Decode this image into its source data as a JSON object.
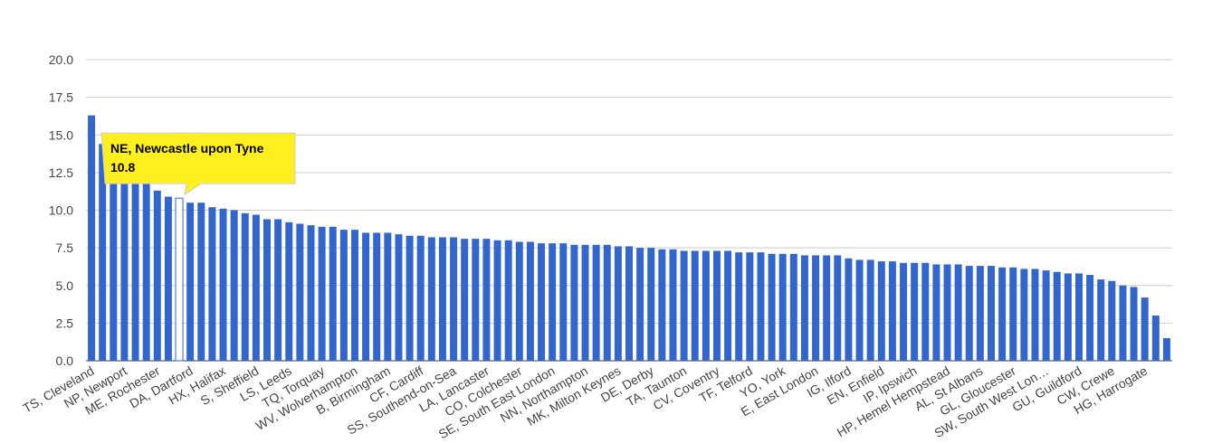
{
  "chart_data": {
    "type": "bar",
    "categories": [
      "TS, Cleveland",
      null,
      null,
      "NP, Newport",
      null,
      null,
      "ME, Rochester",
      null,
      "NE, Newcastle upon Tyne",
      "DA, Dartford",
      null,
      null,
      "HX, Halifax",
      null,
      null,
      "S, Sheffield",
      null,
      null,
      "LS, Leeds",
      null,
      null,
      "TQ, Torquay",
      null,
      null,
      "WV, Wolverhampton",
      null,
      null,
      "B, Birmingham",
      null,
      null,
      "CF, Cardiff",
      null,
      null,
      "SS, Southend-on-Sea",
      null,
      null,
      "LA, Lancaster",
      null,
      null,
      "CO, Colchester",
      null,
      null,
      "SE, South East London",
      null,
      null,
      "NN, Northampton",
      null,
      null,
      "MK, Milton Keynes",
      null,
      null,
      "DE, Derby",
      null,
      null,
      "TA, Taunton",
      null,
      null,
      "CV, Coventry",
      null,
      null,
      "TF, Telford",
      null,
      null,
      "YO, York",
      null,
      null,
      "E, East London",
      null,
      null,
      "IG, Ilford",
      null,
      null,
      "EN, Enfield",
      null,
      null,
      "IP, Ipswich",
      null,
      null,
      "HP, Hemel Hempstead",
      null,
      null,
      "AL, St Albans",
      null,
      null,
      "GL, Gloucester",
      null,
      null,
      "SW, South West Lon…",
      null,
      null,
      "GU, Guildford",
      null,
      null,
      "CW, Crewe",
      null,
      null,
      "HG, Harrogate",
      null,
      null
    ],
    "values": [
      16.3,
      14.4,
      12.2,
      12.0,
      11.9,
      11.8,
      11.3,
      10.9,
      10.8,
      10.5,
      10.5,
      10.2,
      10.1,
      10.0,
      9.8,
      9.7,
      9.4,
      9.4,
      9.2,
      9.1,
      9.0,
      8.9,
      8.9,
      8.7,
      8.7,
      8.5,
      8.5,
      8.5,
      8.4,
      8.3,
      8.3,
      8.2,
      8.2,
      8.2,
      8.1,
      8.1,
      8.1,
      8.0,
      8.0,
      7.9,
      7.9,
      7.8,
      7.8,
      7.8,
      7.7,
      7.7,
      7.7,
      7.7,
      7.6,
      7.6,
      7.5,
      7.5,
      7.4,
      7.4,
      7.3,
      7.3,
      7.3,
      7.3,
      7.3,
      7.2,
      7.2,
      7.2,
      7.1,
      7.1,
      7.1,
      7.0,
      7.0,
      7.0,
      7.0,
      6.8,
      6.7,
      6.7,
      6.6,
      6.6,
      6.5,
      6.5,
      6.5,
      6.4,
      6.4,
      6.4,
      6.3,
      6.3,
      6.3,
      6.2,
      6.2,
      6.1,
      6.1,
      6.0,
      5.9,
      5.8,
      5.8,
      5.7,
      5.4,
      5.3,
      5.0,
      4.9,
      4.2,
      3.0,
      1.5
    ],
    "color": "#3366cc",
    "highlight": 8,
    "ylim": [
      0,
      20
    ],
    "yticks": [
      {
        "value": 0,
        "label": "0.0"
      },
      {
        "value": 2.5,
        "label": "2.5"
      },
      {
        "value": 5,
        "label": "5.0"
      },
      {
        "value": 7.5,
        "label": "7.5"
      },
      {
        "value": 10,
        "label": "10.0"
      },
      {
        "value": 12.5,
        "label": "12.5"
      },
      {
        "value": 15,
        "label": "15.0"
      },
      {
        "value": 17.5,
        "label": "17.5"
      },
      {
        "value": 20,
        "label": "20.0"
      }
    ],
    "grid": true
  }
}
